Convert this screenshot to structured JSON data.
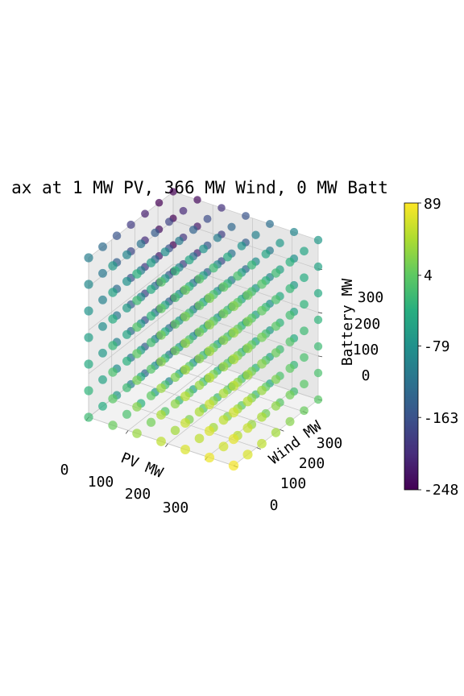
{
  "chart_data": {
    "type": "scatter",
    "projection": "3d",
    "title": "ax at 1 MW PV, 366 MW Wind, 0 MW Batt",
    "xlabel": "PV MW",
    "ylabel": "Wind MW",
    "zlabel": "Battery MW",
    "x_ticks": [
      0,
      100,
      200,
      300
    ],
    "y_ticks": [
      0,
      100,
      200,
      300
    ],
    "z_ticks": [
      0,
      100,
      200,
      300
    ],
    "x_tick_labels": [
      "0",
      "100",
      "200",
      "300"
    ],
    "y_tick_labels": [
      "0",
      "100",
      "200",
      "300"
    ],
    "z_tick_labels": [
      "0",
      "100",
      "200",
      "300"
    ],
    "xlim": [
      0,
      366
    ],
    "ylim": [
      0,
      366
    ],
    "zlim": [
      0,
      366
    ],
    "grid_values": [
      0,
      61,
      122,
      183,
      244,
      305,
      366
    ],
    "colormap": "viridis",
    "colorbar": {
      "min": -248,
      "max": 89,
      "tick_values": [
        89,
        4,
        -79,
        -163,
        -248
      ],
      "tick_labels": [
        "89",
        "4",
        "-79",
        "-163",
        "-248"
      ]
    },
    "grid": true,
    "marker_alpha": 0.7,
    "points_note": "7 x 7 x 7 lattice of points over PV, Wind and Battery MW",
    "values_by_battery": [
      [
        [
          -20,
          10,
          35,
          55,
          70,
          80,
          85
        ],
        [
          -40,
          -10,
          15,
          40,
          55,
          65,
          70
        ],
        [
          -70,
          -35,
          -5,
          20,
          40,
          50,
          55
        ],
        [
          -100,
          -60,
          -25,
          0,
          20,
          35,
          40
        ],
        [
          -130,
          -90,
          -50,
          -20,
          0,
          15,
          25
        ],
        [
          -160,
          -120,
          -80,
          -45,
          -20,
          0,
          10
        ],
        [
          -190,
          -150,
          -110,
          -70,
          -40,
          -15,
          0
        ]
      ],
      [
        [
          -30,
          0,
          25,
          45,
          60,
          70,
          75
        ],
        [
          -55,
          -20,
          5,
          30,
          45,
          55,
          60
        ],
        [
          -85,
          -45,
          -15,
          10,
          30,
          40,
          45
        ],
        [
          -115,
          -75,
          -40,
          -10,
          10,
          25,
          30
        ],
        [
          -145,
          -105,
          -65,
          -30,
          -10,
          5,
          15
        ],
        [
          -175,
          -135,
          -95,
          -60,
          -30,
          -10,
          0
        ],
        [
          -205,
          -165,
          -125,
          -85,
          -50,
          -25,
          -10
        ]
      ],
      [
        [
          -45,
          -10,
          15,
          35,
          50,
          60,
          65
        ],
        [
          -70,
          -35,
          -5,
          20,
          35,
          45,
          50
        ],
        [
          -100,
          -60,
          -25,
          0,
          20,
          30,
          35
        ],
        [
          -130,
          -90,
          -50,
          -20,
          0,
          15,
          20
        ],
        [
          -160,
          -120,
          -80,
          -45,
          -20,
          -5,
          5
        ],
        [
          -190,
          -150,
          -110,
          -75,
          -45,
          -20,
          -10
        ],
        [
          -220,
          -180,
          -140,
          -100,
          -65,
          -40,
          -20
        ]
      ],
      [
        [
          -60,
          -25,
          5,
          25,
          40,
          50,
          55
        ],
        [
          -85,
          -50,
          -15,
          10,
          25,
          35,
          40
        ],
        [
          -115,
          -75,
          -40,
          -10,
          10,
          20,
          25
        ],
        [
          -145,
          -105,
          -65,
          -30,
          -10,
          5,
          10
        ],
        [
          -175,
          -135,
          -95,
          -60,
          -30,
          -15,
          -5
        ],
        [
          -205,
          -165,
          -125,
          -90,
          -55,
          -30,
          -20
        ],
        [
          -235,
          -195,
          -155,
          -115,
          -80,
          -50,
          -30
        ]
      ],
      [
        [
          -75,
          -40,
          -5,
          15,
          30,
          40,
          45
        ],
        [
          -100,
          -65,
          -30,
          0,
          15,
          25,
          30
        ],
        [
          -130,
          -90,
          -55,
          -20,
          0,
          10,
          15
        ],
        [
          -160,
          -120,
          -80,
          -45,
          -20,
          -5,
          0
        ],
        [
          -190,
          -150,
          -110,
          -75,
          -45,
          -25,
          -15
        ],
        [
          -220,
          -180,
          -140,
          -105,
          -70,
          -45,
          -30
        ],
        [
          -248,
          -210,
          -170,
          -130,
          -95,
          -65,
          -45
        ]
      ],
      [
        [
          -90,
          -55,
          -20,
          5,
          20,
          30,
          35
        ],
        [
          -115,
          -80,
          -45,
          -15,
          5,
          15,
          20
        ],
        [
          -145,
          -105,
          -70,
          -35,
          -10,
          0,
          5
        ],
        [
          -175,
          -135,
          -95,
          -60,
          -30,
          -15,
          -10
        ],
        [
          -205,
          -165,
          -125,
          -90,
          -60,
          -35,
          -25
        ],
        [
          -235,
          -195,
          -155,
          -120,
          -85,
          -55,
          -40
        ],
        [
          -248,
          -225,
          -185,
          -145,
          -110,
          -80,
          -55
        ]
      ],
      [
        [
          -105,
          -70,
          -35,
          -5,
          10,
          20,
          25
        ],
        [
          -130,
          -95,
          -60,
          -30,
          -5,
          5,
          10
        ],
        [
          -160,
          -120,
          -85,
          -50,
          -20,
          -10,
          -5
        ],
        [
          -190,
          -150,
          -110,
          -75,
          -45,
          -25,
          -20
        ],
        [
          -220,
          -180,
          -140,
          -105,
          -75,
          -50,
          -35
        ],
        [
          -248,
          -210,
          -170,
          -135,
          -100,
          -70,
          -50
        ],
        [
          -248,
          -240,
          -200,
          -160,
          -125,
          -95,
          -70
        ]
      ]
    ]
  }
}
